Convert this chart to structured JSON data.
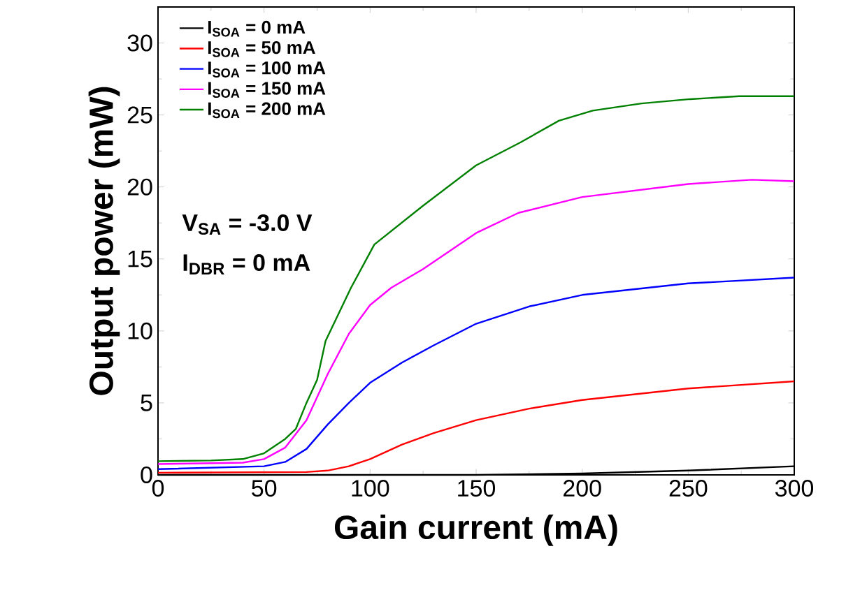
{
  "chart_data": {
    "type": "line",
    "xlabel": "Gain current (mA)",
    "ylabel": "Output power (mW)",
    "xlim": [
      0,
      300
    ],
    "ylim": [
      0,
      32.5
    ],
    "xticks": [
      0,
      50,
      100,
      150,
      200,
      250,
      300
    ],
    "yticks": [
      0,
      5,
      10,
      15,
      20,
      25,
      30
    ],
    "legend": "top left",
    "annotations": [
      "**V$_{SA}$ = -3.0 V**",
      "**I$_{DBR}$ = 0 mA**"
    ],
    "series": [
      {
        "name": "I$_{SOA}$ = 0 mA",
        "color": "#000000",
        "x": [
          0,
          100,
          150,
          200,
          250,
          300
        ],
        "values": [
          0,
          0,
          0,
          0.1,
          0.3,
          0.6
        ]
      },
      {
        "name": "I$_{SOA}$ = 50 mA",
        "color": "#ff0000",
        "x": [
          0,
          70,
          80,
          90,
          100,
          115,
          130,
          150,
          175,
          200,
          250,
          300
        ],
        "values": [
          0.15,
          0.2,
          0.3,
          0.6,
          1.1,
          2.1,
          2.9,
          3.8,
          4.6,
          5.2,
          6.0,
          6.5
        ]
      },
      {
        "name": "I$_{SOA}$ = 100 mA",
        "color": "#0000ff",
        "x": [
          0,
          50,
          60,
          70,
          80,
          90,
          100,
          115,
          130,
          150,
          175,
          200,
          250,
          300
        ],
        "values": [
          0.4,
          0.6,
          0.9,
          1.8,
          3.5,
          5.0,
          6.4,
          7.8,
          9.0,
          10.5,
          11.7,
          12.5,
          13.3,
          13.7
        ]
      },
      {
        "name": "I$_{SOA}$ = 150 mA",
        "color": "#ff00ff",
        "x": [
          0,
          40,
          50,
          60,
          70,
          80,
          90,
          100,
          110,
          125,
          150,
          170,
          200,
          250,
          280,
          300
        ],
        "values": [
          0.75,
          0.85,
          1.1,
          1.9,
          3.8,
          7.0,
          9.8,
          11.8,
          13.0,
          14.3,
          16.8,
          18.2,
          19.3,
          20.2,
          20.5,
          20.4
        ]
      },
      {
        "name": "I$_{SOA}$ = 200 mA",
        "color": "#008000",
        "x": [
          0,
          25,
          40,
          50,
          60,
          65,
          70,
          75,
          79,
          91,
          102,
          125,
          150,
          171,
          189,
          205,
          228,
          251,
          274,
          300
        ],
        "values": [
          0.95,
          1.0,
          1.1,
          1.5,
          2.5,
          3.2,
          5.0,
          6.6,
          9.3,
          13.0,
          16.0,
          18.7,
          21.5,
          23.1,
          24.6,
          25.3,
          25.8,
          26.1,
          26.3,
          26.3
        ]
      }
    ]
  }
}
